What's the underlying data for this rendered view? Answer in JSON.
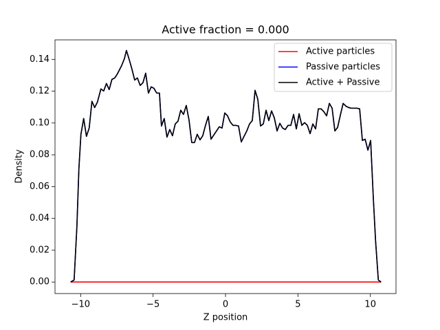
{
  "chart_data": {
    "type": "line",
    "title": "Active fraction = 0.000",
    "xlabel": "Z position",
    "ylabel": "Density",
    "x": [
      -10.69,
      -10.45,
      -10.26,
      -10.12,
      -9.98,
      -9.79,
      -9.6,
      -9.41,
      -9.22,
      -9.03,
      -8.84,
      -8.6,
      -8.41,
      -8.22,
      -8.03,
      -7.84,
      -7.65,
      -7.46,
      -7.17,
      -6.98,
      -6.84,
      -6.65,
      -6.46,
      -6.27,
      -6.08,
      -5.89,
      -5.7,
      -5.51,
      -5.32,
      -5.13,
      -4.94,
      -4.75,
      -4.56,
      -4.42,
      -4.23,
      -4.04,
      -3.85,
      -3.66,
      -3.47,
      -3.28,
      -3.09,
      -2.9,
      -2.71,
      -2.52,
      -2.33,
      -2.14,
      -1.95,
      -1.76,
      -1.57,
      -1.38,
      -1.19,
      -1.0,
      -0.81,
      -0.62,
      -0.43,
      -0.24,
      -0.05,
      0.14,
      0.33,
      0.52,
      0.71,
      0.9,
      1.09,
      1.28,
      1.47,
      1.66,
      1.85,
      2.04,
      2.23,
      2.42,
      2.61,
      2.8,
      2.99,
      3.18,
      3.37,
      3.56,
      3.75,
      3.94,
      4.13,
      4.32,
      4.51,
      4.7,
      4.89,
      5.08,
      5.27,
      5.46,
      5.65,
      5.84,
      6.03,
      6.22,
      6.41,
      6.6,
      6.79,
      6.98,
      7.17,
      7.36,
      7.55,
      7.74,
      7.93,
      8.12,
      8.31,
      8.5,
      8.69,
      8.88,
      9.07,
      9.26,
      9.45,
      9.64,
      9.83,
      10.02,
      10.21,
      10.36,
      10.55,
      10.74
    ],
    "series": [
      {
        "name": "Active particles",
        "color": "#ff0000",
        "values": [
          0,
          0,
          0,
          0,
          0,
          0,
          0,
          0,
          0,
          0,
          0,
          0,
          0,
          0,
          0,
          0,
          0,
          0,
          0,
          0,
          0,
          0,
          0,
          0,
          0,
          0,
          0,
          0,
          0,
          0,
          0,
          0,
          0,
          0,
          0,
          0,
          0,
          0,
          0,
          0,
          0,
          0,
          0,
          0,
          0,
          0,
          0,
          0,
          0,
          0,
          0,
          0,
          0,
          0,
          0,
          0,
          0,
          0,
          0,
          0,
          0,
          0,
          0,
          0,
          0,
          0,
          0,
          0,
          0,
          0,
          0,
          0,
          0,
          0,
          0,
          0,
          0,
          0,
          0,
          0,
          0,
          0,
          0,
          0,
          0,
          0,
          0,
          0,
          0,
          0,
          0,
          0,
          0,
          0,
          0,
          0,
          0,
          0,
          0,
          0,
          0,
          0,
          0,
          0,
          0,
          0,
          0,
          0,
          0,
          0,
          0,
          0,
          0,
          0
        ]
      },
      {
        "name": "Passive particles",
        "color": "#0000ff",
        "values": [
          0,
          0.0013,
          0.0346,
          0.0713,
          0.0929,
          0.1028,
          0.0916,
          0.0968,
          0.1136,
          0.1097,
          0.1132,
          0.1214,
          0.1201,
          0.1248,
          0.121,
          0.1274,
          0.1283,
          0.1309,
          0.1361,
          0.1404,
          0.1456,
          0.14,
          0.1339,
          0.127,
          0.1283,
          0.1236,
          0.1253,
          0.1313,
          0.1188,
          0.1227,
          0.1218,
          0.1188,
          0.1188,
          0.0981,
          0.1028,
          0.0911,
          0.0959,
          0.092,
          0.0994,
          0.1011,
          0.108,
          0.1054,
          0.111,
          0.102,
          0.0877,
          0.0877,
          0.0929,
          0.0894,
          0.092,
          0.0985,
          0.1041,
          0.0898,
          0.0924,
          0.095,
          0.0976,
          0.0968,
          0.1063,
          0.1045,
          0.1006,
          0.0985,
          0.0985,
          0.0981,
          0.0881,
          0.0916,
          0.095,
          0.0994,
          0.1015,
          0.1205,
          0.1149,
          0.0981,
          0.0994,
          0.108,
          0.1015,
          0.1076,
          0.1032,
          0.095,
          0.0998,
          0.0968,
          0.0959,
          0.0985,
          0.0985,
          0.1054,
          0.0963,
          0.1058,
          0.0985,
          0.1002,
          0.0985,
          0.0933,
          0.0994,
          0.0963,
          0.1089,
          0.1089,
          0.1071,
          0.1045,
          0.1123,
          0.1093,
          0.095,
          0.0972,
          0.105,
          0.1123,
          0.1106,
          0.1097,
          0.1093,
          0.1093,
          0.1093,
          0.1089,
          0.089,
          0.0898,
          0.0829,
          0.089,
          0.0518,
          0.0259,
          0.0013,
          0
        ]
      },
      {
        "name": "Active + Passive",
        "color": "#000000",
        "values": [
          0,
          0.0013,
          0.0346,
          0.0713,
          0.0929,
          0.1028,
          0.0916,
          0.0968,
          0.1136,
          0.1097,
          0.1132,
          0.1214,
          0.1201,
          0.1248,
          0.121,
          0.1274,
          0.1283,
          0.1309,
          0.1361,
          0.1404,
          0.1456,
          0.14,
          0.1339,
          0.127,
          0.1283,
          0.1236,
          0.1253,
          0.1313,
          0.1188,
          0.1227,
          0.1218,
          0.1188,
          0.1188,
          0.0981,
          0.1028,
          0.0911,
          0.0959,
          0.092,
          0.0994,
          0.1011,
          0.108,
          0.1054,
          0.111,
          0.102,
          0.0877,
          0.0877,
          0.0929,
          0.0894,
          0.092,
          0.0985,
          0.1041,
          0.0898,
          0.0924,
          0.095,
          0.0976,
          0.0968,
          0.1063,
          0.1045,
          0.1006,
          0.0985,
          0.0985,
          0.0981,
          0.0881,
          0.0916,
          0.095,
          0.0994,
          0.1015,
          0.1205,
          0.1149,
          0.0981,
          0.0994,
          0.108,
          0.1015,
          0.1076,
          0.1032,
          0.095,
          0.0998,
          0.0968,
          0.0959,
          0.0985,
          0.0985,
          0.1054,
          0.0963,
          0.1058,
          0.0985,
          0.1002,
          0.0985,
          0.0933,
          0.0994,
          0.0963,
          0.1089,
          0.1089,
          0.1071,
          0.1045,
          0.1123,
          0.1093,
          0.095,
          0.0972,
          0.105,
          0.1123,
          0.1106,
          0.1097,
          0.1093,
          0.1093,
          0.1093,
          0.1089,
          0.089,
          0.0898,
          0.0829,
          0.089,
          0.0518,
          0.0259,
          0.0013,
          0
        ]
      }
    ],
    "xlim": [
      -11.77,
      11.77
    ],
    "ylim": [
      -0.00725,
      0.15225
    ],
    "xticks": [
      {
        "value": -10,
        "label": "−10"
      },
      {
        "value": -5,
        "label": "−5"
      },
      0,
      5,
      10
    ],
    "yticks": [
      {
        "value": 0,
        "label": "0.00"
      },
      {
        "value": 0.02,
        "label": "0.02"
      },
      {
        "value": 0.04,
        "label": "0.04"
      },
      {
        "value": 0.06,
        "label": "0.06"
      },
      {
        "value": 0.08,
        "label": "0.08"
      },
      {
        "value": 0.1,
        "label": "0.10"
      },
      {
        "value": 0.12,
        "label": "0.12"
      },
      {
        "value": 0.14,
        "label": "0.14"
      }
    ],
    "legend": "upper right",
    "grid": false
  }
}
